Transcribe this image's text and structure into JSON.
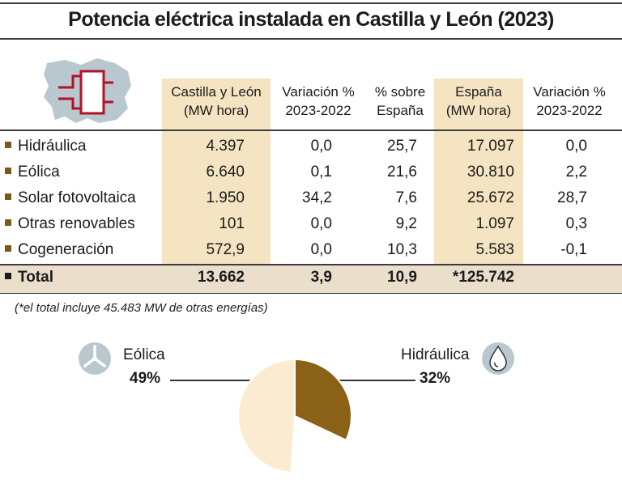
{
  "title": "Potencia eléctrica instalada en Castilla y León (2023)",
  "table": {
    "headers": [
      [
        "Castilla y León",
        "(MW hora)"
      ],
      [
        "Variación %",
        "2023-2022"
      ],
      [
        "% sobre",
        "España"
      ],
      [
        "España",
        "(MW hora)"
      ],
      [
        "Variación %",
        "2023-2022"
      ]
    ],
    "rows": [
      {
        "label": "Hidráulica",
        "values": [
          "4.397",
          "0,0",
          "25,7",
          "17.097",
          "0,0"
        ]
      },
      {
        "label": "Eólica",
        "values": [
          "6.640",
          "0,1",
          "21,6",
          "30.810",
          "2,2"
        ]
      },
      {
        "label": "Solar fotovoltaica",
        "values": [
          "1.950",
          "34,2",
          "7,6",
          "25.672",
          "28,7"
        ]
      },
      {
        "label": "Otras renovables",
        "values": [
          "101",
          "0,0",
          "9,2",
          "1.097",
          "0,3"
        ]
      },
      {
        "label": "Cogeneración",
        "values": [
          "572,9",
          "0,0",
          "10,3",
          "5.583",
          "-0,1"
        ]
      }
    ],
    "total": {
      "label": "Total",
      "values": [
        "13.662",
        "3,9",
        "10,9",
        "*125.742",
        ""
      ]
    }
  },
  "footnote": "(*el total incluye 45.483 MW de otras energías)",
  "icons": {
    "map": "castilla-leon-map-icon",
    "plug": "plug-icon",
    "wind": "wind-turbine-icon",
    "drop": "water-drop-icon"
  },
  "colors": {
    "accent": "#7c5a16",
    "beige": "#f5e4c1",
    "total_bg": "#ebdfcc",
    "map": "#b9c7cf"
  },
  "chart_data": {
    "type": "pie",
    "slices": [
      {
        "label": "Eólica",
        "value": 49,
        "pct_label": "49%",
        "color": "#fbebd0"
      },
      {
        "label": "Hidráulica",
        "value": 32,
        "pct_label": "32%",
        "color": "#8a6217"
      }
    ]
  }
}
